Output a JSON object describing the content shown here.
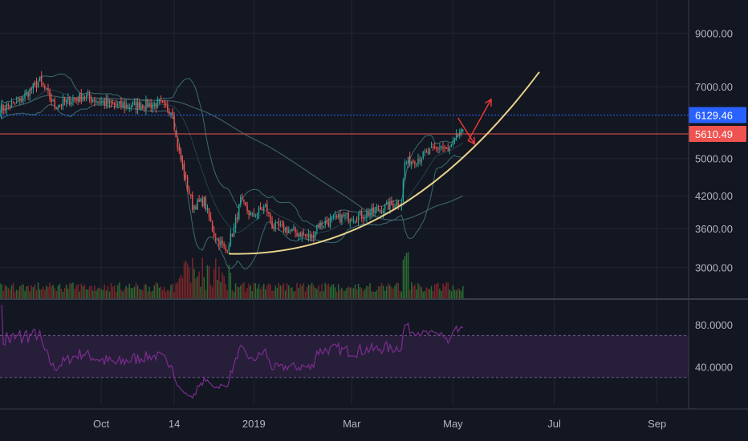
{
  "chart_data": {
    "type": "candlestick",
    "title": "",
    "theme": {
      "background": "#131722",
      "grid": "#222632",
      "axis_text": "#b2b5be",
      "up_color": "#26a69a",
      "down_color": "#ef5350",
      "volume_up": "#2e7d32",
      "volume_down": "#8e2a2a",
      "bollinger": "#3a6b73",
      "ma": "#3f5e66",
      "curve": "#e8d28a",
      "arrow": "#e53935",
      "rsi_line": "#7b2d8e",
      "rsi_band": "#2a1f3d"
    },
    "x_axis": {
      "start": "2018-08-01",
      "end": "2019-09-20",
      "ticks": [
        {
          "date": "2018-10-01",
          "label": "Oct"
        },
        {
          "date": "2018-11-14",
          "label": "14"
        },
        {
          "date": "2019-01-01",
          "label": "2019"
        },
        {
          "date": "2019-03-01",
          "label": "Mar"
        },
        {
          "date": "2019-05-01",
          "label": "May"
        },
        {
          "date": "2019-07-01",
          "label": "Jul"
        },
        {
          "date": "2019-09-01",
          "label": "Sep"
        }
      ]
    },
    "price_axis": {
      "scale": "log",
      "range": [
        2800,
        10200
      ],
      "ticks": [
        {
          "value": 9000,
          "label": "9000.00"
        },
        {
          "value": 7000,
          "label": "7000.00"
        },
        {
          "value": 5000,
          "label": "5000.00"
        },
        {
          "value": 4200,
          "label": "4200.00"
        },
        {
          "value": 3600,
          "label": "3600.00"
        },
        {
          "value": 3000,
          "label": "3000.00"
        }
      ]
    },
    "price_lines": [
      {
        "value": 6129.46,
        "label": "6129.46",
        "color": "#2962ff",
        "style": "dotted"
      },
      {
        "value": 5610.49,
        "label": "5610.49",
        "color": "#ef5350",
        "style": "solid"
      }
    ],
    "price_anchors": [
      {
        "date": "2018-08-01",
        "price": 6300
      },
      {
        "date": "2018-08-12",
        "price": 6500
      },
      {
        "date": "2018-08-25",
        "price": 7200
      },
      {
        "date": "2018-09-03",
        "price": 6400
      },
      {
        "date": "2018-09-20",
        "price": 6700
      },
      {
        "date": "2018-10-10",
        "price": 6400
      },
      {
        "date": "2018-11-05",
        "price": 6450
      },
      {
        "date": "2018-11-13",
        "price": 6250
      },
      {
        "date": "2018-11-15",
        "price": 5500
      },
      {
        "date": "2018-11-19",
        "price": 4800
      },
      {
        "date": "2018-11-25",
        "price": 4000
      },
      {
        "date": "2018-12-02",
        "price": 4100
      },
      {
        "date": "2018-12-08",
        "price": 3500
      },
      {
        "date": "2018-12-15",
        "price": 3250
      },
      {
        "date": "2018-12-20",
        "price": 3600
      },
      {
        "date": "2018-12-24",
        "price": 4100
      },
      {
        "date": "2018-12-31",
        "price": 3800
      },
      {
        "date": "2019-01-08",
        "price": 4000
      },
      {
        "date": "2019-01-12",
        "price": 3650
      },
      {
        "date": "2019-01-25",
        "price": 3550
      },
      {
        "date": "2019-02-05",
        "price": 3450
      },
      {
        "date": "2019-02-08",
        "price": 3650
      },
      {
        "date": "2019-02-24",
        "price": 3800
      },
      {
        "date": "2019-03-04",
        "price": 3800
      },
      {
        "date": "2019-03-15",
        "price": 3900
      },
      {
        "date": "2019-03-31",
        "price": 4100
      },
      {
        "date": "2019-04-02",
        "price": 4900
      },
      {
        "date": "2019-04-12",
        "price": 5050
      },
      {
        "date": "2019-04-24",
        "price": 5300
      },
      {
        "date": "2019-04-28",
        "price": 5150
      },
      {
        "date": "2019-05-01",
        "price": 5350
      },
      {
        "date": "2019-05-05",
        "price": 5650
      },
      {
        "date": "2019-05-07",
        "price": 5610
      }
    ],
    "overlays": {
      "parabolic_curve": {
        "start": {
          "date": "2018-12-17",
          "price": 3200
        },
        "end": {
          "date": "2019-06-22",
          "price": 7500
        }
      },
      "arrows": [
        {
          "from": {
            "date": "2019-05-10",
            "price": 5420
          },
          "to": {
            "date": "2019-05-24",
            "price": 6600
          }
        },
        {
          "from": {
            "date": "2019-05-04",
            "price": 6050
          },
          "to": {
            "date": "2019-05-14",
            "price": 5350
          }
        }
      ]
    },
    "rsi": {
      "ticks": [
        {
          "value": 80,
          "label": "80.0000"
        },
        {
          "value": 40,
          "label": "40.0000"
        }
      ],
      "band": [
        30,
        70
      ]
    }
  }
}
